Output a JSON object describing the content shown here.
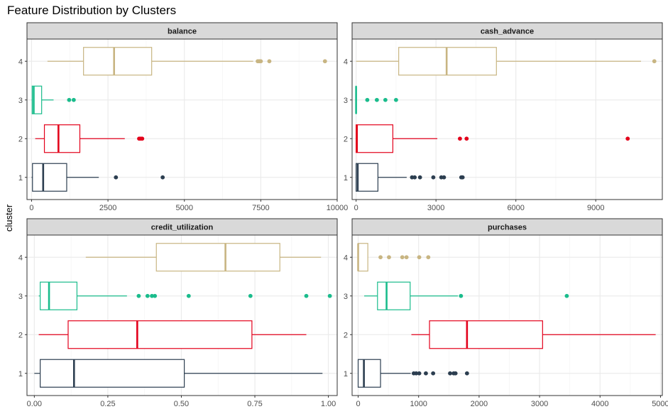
{
  "title": "Feature Distribution by Clusters",
  "ylabel": "cluster",
  "colors": {
    "1": "#2c3e50",
    "2": "#e3001b",
    "3": "#1abc8c",
    "4": "#c8b582",
    "strip_fill": "#d9d9d9",
    "grid_major": "#ebebeb",
    "grid_minor": "#f5f5f5",
    "panel_border": "#333333"
  },
  "chart_data": [
    {
      "type": "boxplot",
      "facet": "balance",
      "categories": [
        "1",
        "2",
        "3",
        "4"
      ],
      "xlim": [
        -150,
        10000
      ],
      "xticks": [
        0,
        2500,
        5000,
        7500,
        10000
      ],
      "xticklabels": [
        "0",
        "2500",
        "5000",
        "7500",
        "10000"
      ],
      "boxes": [
        {
          "cluster": "1",
          "whisker_low": 0,
          "q1": 30,
          "median": 380,
          "q3": 1150,
          "whisker_high": 2200,
          "outliers": [
            2760,
            4290
          ]
        },
        {
          "cluster": "2",
          "whisker_low": 120,
          "q1": 420,
          "median": 880,
          "q3": 1580,
          "whisker_high": 3050,
          "outliers": [
            3520,
            3570,
            3620
          ]
        },
        {
          "cluster": "3",
          "whisker_low": 0,
          "q1": 20,
          "median": 70,
          "q3": 330,
          "whisker_high": 720,
          "outliers": [
            1230,
            1380
          ]
        },
        {
          "cluster": "4",
          "whisker_low": 520,
          "q1": 1700,
          "median": 2700,
          "q3": 3930,
          "whisker_high": 7250,
          "outliers": [
            7400,
            7450,
            7500,
            7780,
            9600
          ]
        }
      ]
    },
    {
      "type": "boxplot",
      "facet": "cash_advance",
      "categories": [
        "1",
        "2",
        "3",
        "4"
      ],
      "xlim": [
        -150,
        11500
      ],
      "xticks": [
        0,
        3000,
        6000,
        9000
      ],
      "xticklabels": [
        "0",
        "3000",
        "6000",
        "9000"
      ],
      "boxes": [
        {
          "cluster": "1",
          "whisker_low": 0,
          "q1": 0,
          "median": 60,
          "q3": 820,
          "whisker_high": 1900,
          "outliers": [
            2100,
            2200,
            2400,
            2900,
            3200,
            3300,
            3950,
            4000
          ]
        },
        {
          "cluster": "2",
          "whisker_low": 0,
          "q1": 0,
          "median": 30,
          "q3": 1380,
          "whisker_high": 3050,
          "outliers": [
            3900,
            4150,
            10200
          ]
        },
        {
          "cluster": "3",
          "whisker_low": 0,
          "q1": 0,
          "median": 0,
          "q3": 0,
          "whisker_high": 0,
          "outliers": [
            420,
            780,
            1100,
            1500
          ]
        },
        {
          "cluster": "4",
          "whisker_low": 0,
          "q1": 1600,
          "median": 3400,
          "q3": 5270,
          "whisker_high": 10700,
          "outliers": [
            11200
          ]
        }
      ]
    },
    {
      "type": "boxplot",
      "facet": "credit_utilization",
      "categories": [
        "1",
        "2",
        "3",
        "4"
      ],
      "xlim": [
        -0.025,
        1.03
      ],
      "xticks": [
        0,
        0.25,
        0.5,
        0.75,
        1.0
      ],
      "xticklabels": [
        "0.00",
        "0.25",
        "0.50",
        "0.75",
        "1.00"
      ],
      "boxes": [
        {
          "cluster": "1",
          "whisker_low": 0.0,
          "q1": 0.02,
          "median": 0.135,
          "q3": 0.51,
          "whisker_high": 0.98,
          "outliers": []
        },
        {
          "cluster": "2",
          "whisker_low": 0.015,
          "q1": 0.115,
          "median": 0.35,
          "q3": 0.74,
          "whisker_high": 0.925,
          "outliers": []
        },
        {
          "cluster": "3",
          "whisker_low": 0.015,
          "q1": 0.02,
          "median": 0.05,
          "q3": 0.145,
          "whisker_high": 0.315,
          "outliers": [
            0.355,
            0.385,
            0.4,
            0.41,
            0.525,
            0.735,
            0.925,
            1.005
          ]
        },
        {
          "cluster": "4",
          "whisker_low": 0.175,
          "q1": 0.415,
          "median": 0.65,
          "q3": 0.835,
          "whisker_high": 0.975,
          "outliers": []
        }
      ]
    },
    {
      "type": "boxplot",
      "facet": "purchases",
      "categories": [
        "1",
        "2",
        "3",
        "4"
      ],
      "xlim": [
        -100,
        5030
      ],
      "xticks": [
        0,
        1000,
        2000,
        3000,
        4000,
        5000
      ],
      "xticklabels": [
        "0",
        "1000",
        "2000",
        "3000",
        "4000",
        "5000"
      ],
      "boxes": [
        {
          "cluster": "1",
          "whisker_low": 0,
          "q1": 0,
          "median": 95,
          "q3": 370,
          "whisker_high": 870,
          "outliers": [
            920,
            960,
            1010,
            1120,
            1240,
            1520,
            1580,
            1610,
            1800
          ]
        },
        {
          "cluster": "2",
          "whisker_low": 880,
          "q1": 1180,
          "median": 1800,
          "q3": 3050,
          "whisker_high": 4920,
          "outliers": []
        },
        {
          "cluster": "3",
          "whisker_low": 100,
          "q1": 320,
          "median": 470,
          "q3": 860,
          "whisker_high": 1650,
          "outliers": [
            1700,
            3450
          ]
        },
        {
          "cluster": "4",
          "whisker_low": 0,
          "q1": 0,
          "median": 0,
          "q3": 160,
          "whisker_high": 160,
          "outliers": [
            370,
            510,
            730,
            800,
            1010,
            1160
          ]
        }
      ]
    }
  ]
}
